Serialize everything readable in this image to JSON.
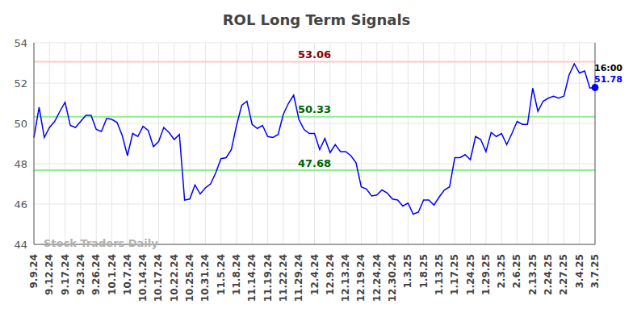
{
  "chart_data": {
    "type": "line",
    "title": "ROL Long Term Signals",
    "watermark": "Stock Traders Daily",
    "categories": [
      "9.9.24",
      null,
      null,
      "9.12.24",
      null,
      null,
      "9.17.24",
      null,
      null,
      "9.23.24",
      null,
      null,
      "9.26.24",
      null,
      null,
      "10.1.24",
      null,
      null,
      "10.7.24",
      null,
      null,
      "10.14.24",
      null,
      null,
      "10.17.24",
      null,
      null,
      "10.22.24",
      null,
      null,
      "10.25.24",
      null,
      null,
      "10.31.24",
      null,
      null,
      "11.5.24",
      null,
      null,
      "11.8.24",
      null,
      null,
      "11.14.24",
      null,
      null,
      "11.19.24",
      null,
      null,
      "11.22.24",
      null,
      null,
      "11.29.24",
      null,
      null,
      "12.4.24",
      null,
      null,
      "12.9.24",
      null,
      null,
      "12.13.24",
      null,
      null,
      "12.19.24",
      null,
      null,
      "12.24.24",
      null,
      null,
      "12.30.24",
      null,
      null,
      "1.3.25",
      null,
      null,
      "1.8.25",
      null,
      null,
      "1.13.25",
      null,
      null,
      "1.17.25",
      null,
      null,
      "1.24.25",
      null,
      null,
      "1.29.25",
      null,
      null,
      "2.3.25",
      null,
      null,
      "2.6.25",
      null,
      null,
      "2.13.25",
      null,
      null,
      "2.24.25",
      null,
      null,
      "2.27.25",
      null,
      null,
      "3.4.25",
      null,
      null,
      "3.7.25"
    ],
    "values": [
      49.3,
      50.8,
      49.3,
      49.8,
      50.1,
      50.6,
      51.05,
      49.9,
      49.8,
      50.1,
      50.4,
      50.4,
      49.7,
      49.6,
      50.25,
      50.2,
      50.05,
      49.4,
      48.4,
      49.5,
      49.35,
      49.85,
      49.65,
      48.85,
      49.1,
      49.8,
      49.55,
      49.2,
      49.45,
      46.2,
      46.25,
      46.95,
      46.5,
      46.8,
      47.0,
      47.55,
      48.25,
      48.3,
      48.7,
      49.9,
      50.9,
      51.1,
      49.95,
      49.75,
      49.9,
      49.35,
      49.3,
      49.45,
      50.45,
      51.0,
      51.4,
      50.2,
      49.7,
      49.5,
      49.5,
      48.7,
      49.25,
      48.55,
      48.95,
      48.6,
      48.6,
      48.4,
      48.05,
      46.85,
      46.75,
      46.4,
      46.45,
      46.7,
      46.55,
      46.25,
      46.2,
      45.9,
      46.05,
      45.5,
      45.6,
      46.2,
      46.2,
      45.95,
      46.35,
      46.7,
      46.85,
      48.3,
      48.3,
      48.45,
      48.2,
      49.35,
      49.2,
      48.6,
      49.55,
      49.35,
      49.5,
      48.95,
      49.5,
      50.1,
      49.95,
      49.95,
      51.75,
      50.6,
      51.1,
      51.25,
      51.35,
      51.25,
      51.35,
      52.4,
      52.95,
      52.5,
      52.6,
      51.75,
      51.78
    ],
    "color": "#0000ff",
    "ylim": [
      44,
      54
    ],
    "yticks": [
      44,
      46,
      48,
      50,
      52,
      54
    ],
    "grid": true,
    "reference_lines": [
      {
        "value": 53.06,
        "label": "53.06",
        "color": "#ffc8c8"
      },
      {
        "value": 50.33,
        "label": "50.33",
        "color": "#90ee90"
      },
      {
        "value": 47.68,
        "label": "47.68",
        "color": "#90ee90"
      }
    ],
    "end_label": {
      "text": "16:00",
      "value": 51.78
    }
  }
}
